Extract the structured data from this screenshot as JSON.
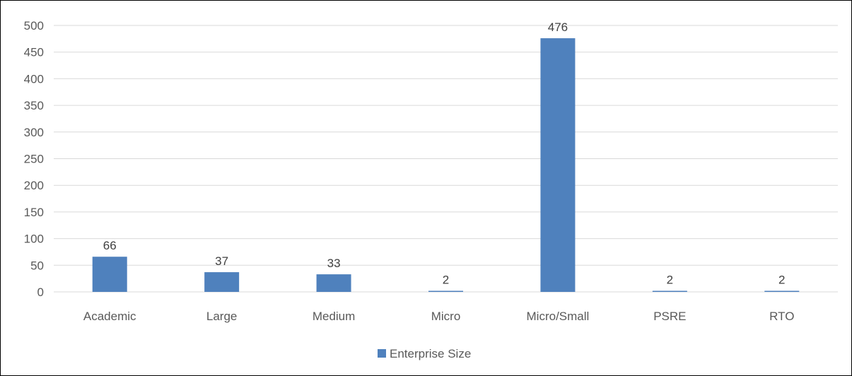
{
  "chart_data": {
    "type": "bar",
    "title": "",
    "xlabel": "",
    "ylabel": "",
    "categories": [
      "Academic",
      "Large",
      "Medium",
      "Micro",
      "Micro/Small",
      "PSRE",
      "RTO"
    ],
    "series": [
      {
        "name": "Enterprise Size",
        "values": [
          66,
          37,
          33,
          2,
          476,
          2,
          2
        ],
        "color": "#4F81BD"
      }
    ],
    "data_labels": [
      "66",
      "37",
      "33",
      "2",
      "476",
      "2",
      "2"
    ],
    "ylim": [
      0,
      500
    ],
    "y_ticks": [
      "0",
      "50",
      "100",
      "150",
      "200",
      "250",
      "300",
      "350",
      "400",
      "450",
      "500"
    ],
    "grid": true,
    "gridline_color": "#D9D9D9",
    "legend_position": "bottom",
    "legend_label": "Enterprise Size"
  }
}
